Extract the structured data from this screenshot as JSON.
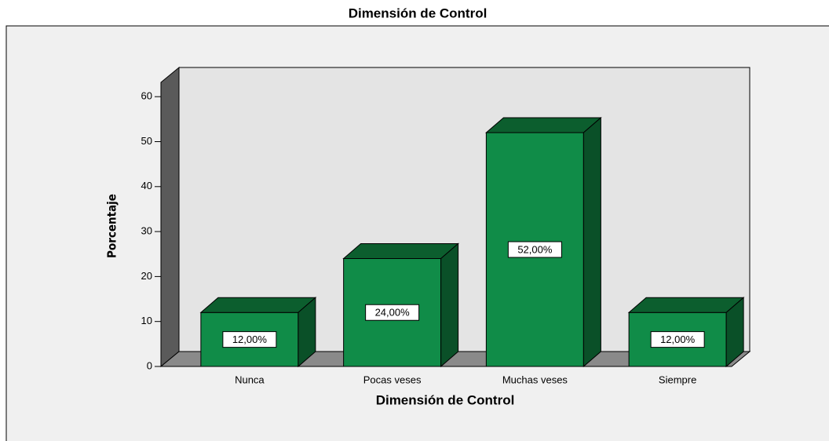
{
  "chart_data": {
    "type": "bar3d",
    "title": "Dimensión de Control",
    "x_label": "Dimensión de Control",
    "y_label": "Porcentaje",
    "categories": [
      "Nunca",
      "Pocas veses",
      "Muchas veses",
      "Siempre"
    ],
    "values": [
      12,
      24,
      52,
      12
    ],
    "value_labels": [
      "12,00%",
      "24,00%",
      "52,00%",
      "12,00%"
    ],
    "color": "#108c48",
    "ylim": [
      0,
      63
    ],
    "yticks": [
      0,
      10,
      20,
      30,
      40,
      50,
      60
    ]
  }
}
